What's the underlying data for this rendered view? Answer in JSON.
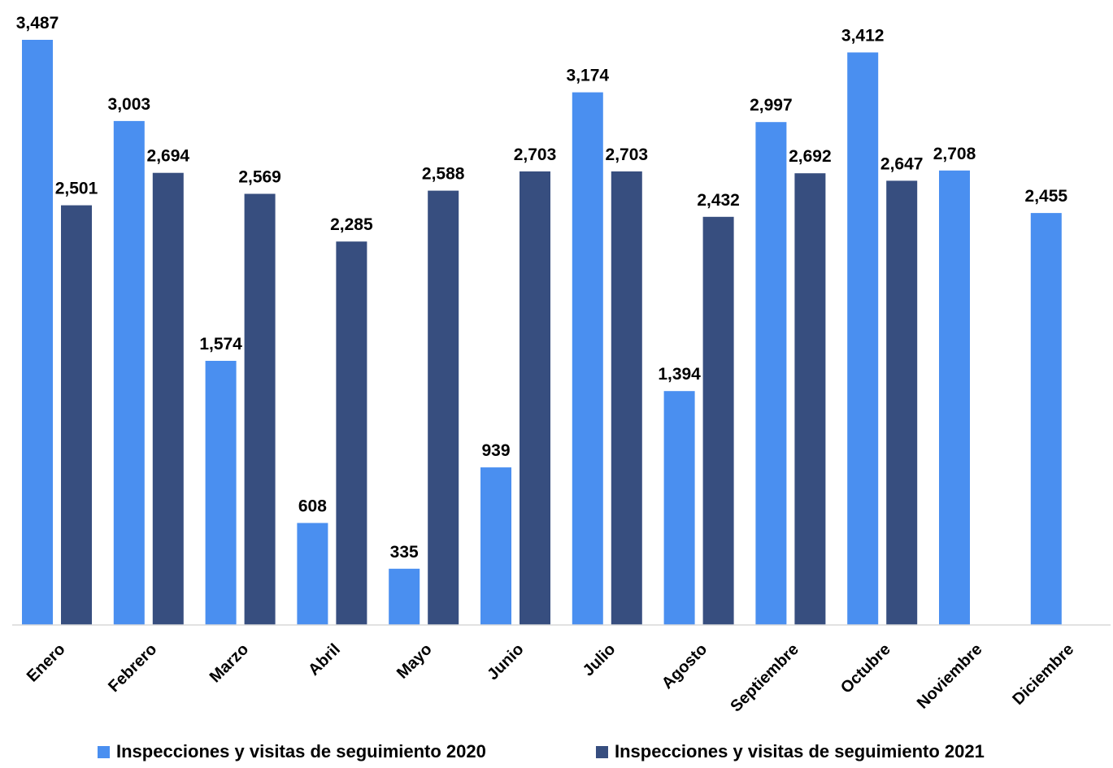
{
  "chart_data": {
    "type": "bar",
    "categories": [
      "Enero",
      "Febrero",
      "Marzo",
      "Abril",
      "Mayo",
      "Junio",
      "Julio",
      "Agosto",
      "Septiembre",
      "Octubre",
      "Noviembre",
      "Diciembre"
    ],
    "series": [
      {
        "name": "Inspecciones y visitas de seguimiento 2020",
        "color": "#4a8ff0",
        "values": [
          3487,
          3003,
          1574,
          608,
          335,
          939,
          3174,
          1394,
          2997,
          3412,
          2708,
          2455
        ],
        "labels": [
          "3,487",
          "3,003",
          "1,574",
          "608",
          "335",
          "939",
          "3,174",
          "1,394",
          "2,997",
          "3,412",
          "2,708",
          "2,455"
        ]
      },
      {
        "name": "Inspecciones y visitas de seguimiento 2021",
        "color": "#374e7f",
        "values": [
          2501,
          2694,
          2569,
          2285,
          2588,
          2703,
          2703,
          2432,
          2692,
          2647,
          null,
          null
        ],
        "labels": [
          "2,501",
          "2,694",
          "2,569",
          "2,285",
          "2,588",
          "2,703",
          "2,703",
          "2,432",
          "2,692",
          "2,647",
          null,
          null
        ]
      }
    ],
    "ylim": [
      0,
      3487
    ],
    "grid": false,
    "legend_position": "bottom"
  }
}
